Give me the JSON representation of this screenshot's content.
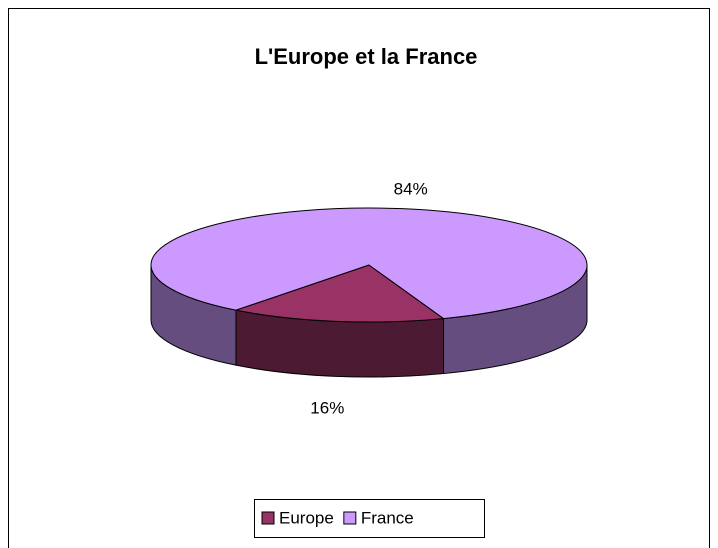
{
  "chart_data": {
    "type": "pie",
    "title": "L'Europe et la France",
    "categories": [
      "Europe",
      "France"
    ],
    "values": [
      16,
      84
    ],
    "value_labels": [
      "16%",
      "84%"
    ],
    "colors": [
      "#993366",
      "#cc99ff"
    ],
    "legend": "bottom"
  }
}
